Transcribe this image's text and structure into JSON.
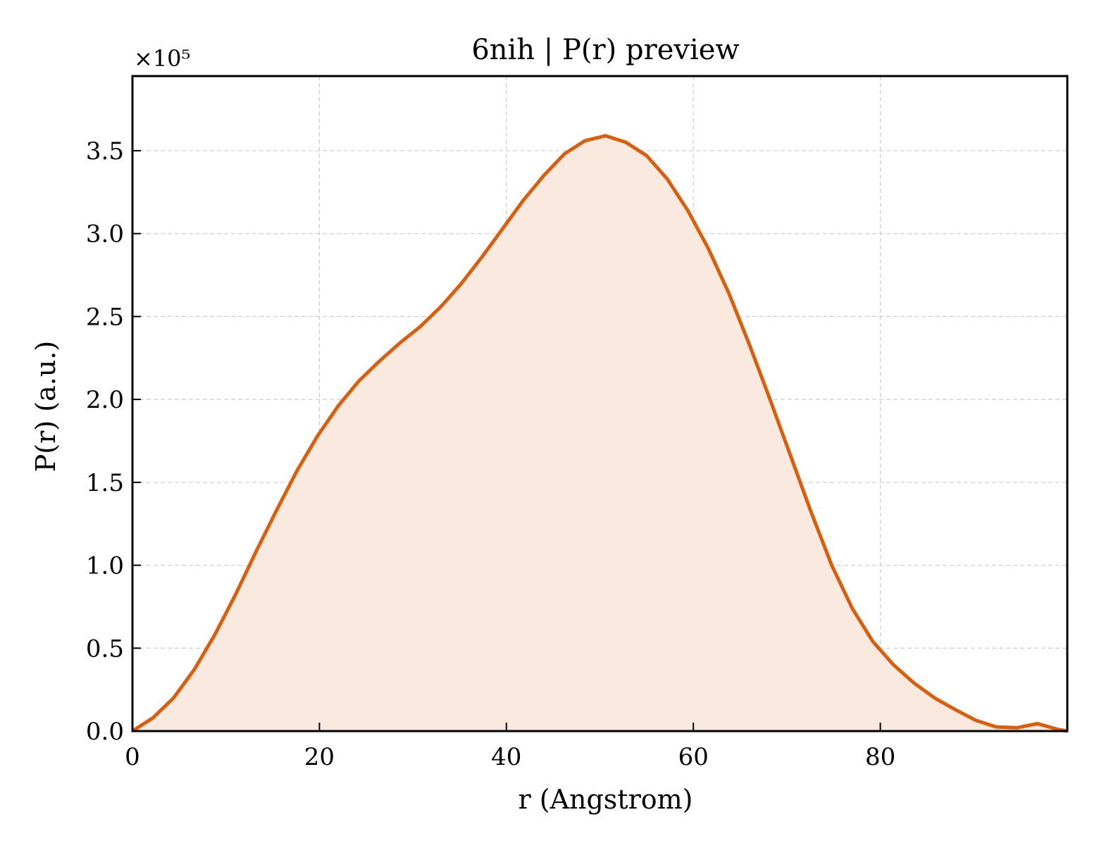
{
  "chart_data": {
    "type": "area",
    "title": "6nih | P(r) preview",
    "xlabel": "r (Angstrom)",
    "ylabel": "P(r) (a.u.)",
    "y_offset_label": "×10⁵",
    "y_scale_exponent": 5,
    "xlim": [
      0,
      100
    ],
    "ylim": [
      0,
      395000
    ],
    "x_ticks": [
      0,
      20,
      40,
      60,
      80
    ],
    "x_tick_labels": [
      "0",
      "20",
      "40",
      "60",
      "80"
    ],
    "y_ticks": [
      0,
      50000,
      100000,
      150000,
      200000,
      250000,
      300000,
      350000
    ],
    "y_tick_labels": [
      "0.0",
      "0.5",
      "1.0",
      "1.5",
      "2.0",
      "2.5",
      "3.0",
      "3.5"
    ],
    "grid": true,
    "colors": {
      "line": "#d95f0e",
      "fill": "#f9e9de"
    },
    "series": [
      {
        "x": [
          0,
          2.2,
          4.4,
          6.6,
          8.8,
          11.0,
          13.2,
          15.4,
          17.6,
          19.8,
          22.0,
          24.2,
          26.4,
          28.6,
          30.8,
          33.0,
          35.2,
          37.4,
          39.6,
          41.8,
          44.0,
          46.2,
          48.4,
          50.6,
          52.8,
          55.0,
          57.2,
          59.4,
          61.6,
          63.8,
          66.0,
          68.2,
          70.4,
          72.6,
          74.8,
          77.0,
          79.2,
          81.4,
          83.6,
          85.8,
          88.0,
          90.2,
          92.4,
          94.6,
          96.8,
          99.0,
          100.0
        ],
        "y": [
          0,
          8000,
          20000,
          37000,
          58000,
          82000,
          108000,
          133000,
          157000,
          178000,
          196000,
          211000,
          223000,
          234000,
          244000,
          256000,
          270000,
          286000,
          303000,
          320000,
          335000,
          348000,
          356000,
          359000,
          355000,
          347000,
          333000,
          314000,
          291000,
          264000,
          233000,
          200000,
          166000,
          132000,
          100000,
          74000,
          54000,
          40000,
          29000,
          20000,
          13000,
          6500,
          2500,
          2000,
          4500,
          1000,
          0
        ]
      }
    ]
  }
}
